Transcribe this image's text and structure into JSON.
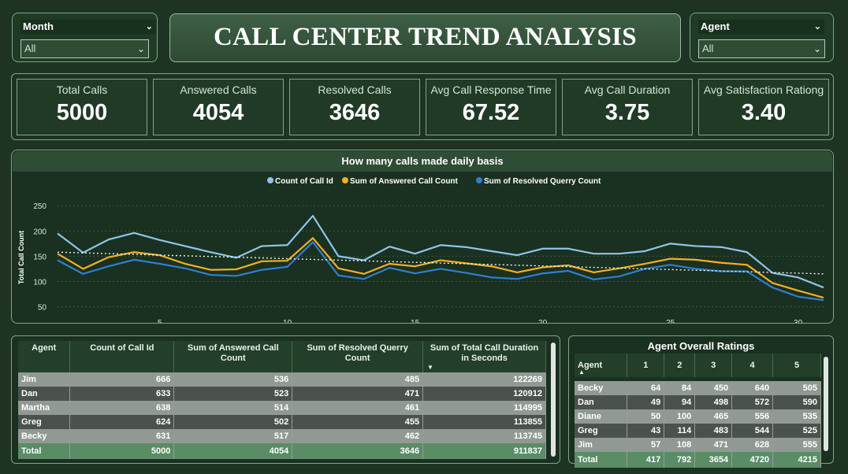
{
  "month_slicer": {
    "title": "Month",
    "value": "All"
  },
  "agent_slicer": {
    "title": "Agent",
    "value": "All"
  },
  "title": "CALL CENTER TREND ANALYSIS",
  "kpis": [
    {
      "label": "Total Calls",
      "value": "5000"
    },
    {
      "label": "Answered Calls",
      "value": "4054"
    },
    {
      "label": "Resolved Calls",
      "value": "3646"
    },
    {
      "label": "Avg Call Response Time",
      "value": "67.52"
    },
    {
      "label": "Avg Call Duration",
      "value": "3.75"
    },
    {
      "label": "Avg Satisfaction Rationg",
      "value": "3.40"
    }
  ],
  "chart_data": {
    "type": "line",
    "title": "How many calls made daily basis",
    "ylabel": "Total Call Count",
    "xlabel": "",
    "xlim": [
      1,
      31
    ],
    "ylim": [
      40,
      255
    ],
    "x_ticks": [
      5,
      10,
      15,
      20,
      25,
      30
    ],
    "y_ticks": [
      50,
      100,
      150,
      200,
      250
    ],
    "legend_position": "top",
    "x": [
      1,
      2,
      3,
      4,
      5,
      6,
      7,
      8,
      9,
      10,
      11,
      12,
      13,
      14,
      15,
      16,
      17,
      18,
      19,
      20,
      21,
      22,
      23,
      24,
      25,
      26,
      27,
      28,
      29,
      30,
      31
    ],
    "series": [
      {
        "name": "Count of Call Id",
        "color": "#8fc4e8",
        "values": [
          195,
          157,
          183,
          196,
          182,
          170,
          158,
          147,
          170,
          172,
          230,
          150,
          142,
          169,
          155,
          172,
          168,
          160,
          152,
          165,
          165,
          155,
          155,
          160,
          175,
          170,
          168,
          158,
          117,
          108,
          88
        ]
      },
      {
        "name": "Sum of Answered Call Count",
        "color": "#f2b024",
        "values": [
          155,
          125,
          148,
          158,
          152,
          135,
          123,
          124,
          140,
          141,
          186,
          126,
          115,
          135,
          130,
          142,
          136,
          130,
          118,
          128,
          132,
          118,
          126,
          135,
          145,
          143,
          137,
          133,
          97,
          82,
          68
        ]
      },
      {
        "name": "Sum of Resolved Querry Count",
        "color": "#2e7fd0",
        "values": [
          142,
          115,
          130,
          143,
          135,
          126,
          113,
          111,
          123,
          129,
          178,
          112,
          105,
          127,
          116,
          125,
          117,
          108,
          105,
          116,
          121,
          104,
          110,
          125,
          133,
          125,
          120,
          120,
          88,
          70,
          63
        ]
      }
    ],
    "trendline": {
      "color": "#ffffff",
      "start": 158,
      "end": 115
    }
  },
  "agent_table": {
    "columns": [
      "Agent",
      "Count of Call Id",
      "Sum of Answered Call Count",
      "Sum of Resolved Querry Count",
      "Sum of Total Call Duration in Seconds"
    ],
    "rows": [
      [
        "Jim",
        "666",
        "536",
        "485",
        "122269"
      ],
      [
        "Dan",
        "633",
        "523",
        "471",
        "120912"
      ],
      [
        "Martha",
        "638",
        "514",
        "461",
        "114995"
      ],
      [
        "Greg",
        "624",
        "502",
        "455",
        "113855"
      ],
      [
        "Becky",
        "631",
        "517",
        "462",
        "113745"
      ]
    ],
    "total": [
      "Total",
      "5000",
      "4054",
      "3646",
      "911837"
    ]
  },
  "ratings_table": {
    "title": "Agent Overall Ratings",
    "columns": [
      "Agent",
      "1",
      "2",
      "3",
      "4",
      "5"
    ],
    "rows": [
      [
        "Becky",
        "64",
        "84",
        "450",
        "640",
        "505"
      ],
      [
        "Dan",
        "49",
        "94",
        "498",
        "572",
        "590"
      ],
      [
        "Diane",
        "50",
        "100",
        "465",
        "556",
        "535"
      ],
      [
        "Greg",
        "43",
        "114",
        "483",
        "544",
        "525"
      ],
      [
        "Jim",
        "57",
        "108",
        "471",
        "628",
        "555"
      ]
    ],
    "total": [
      "Total",
      "417",
      "792",
      "3654",
      "4720",
      "4215"
    ]
  }
}
